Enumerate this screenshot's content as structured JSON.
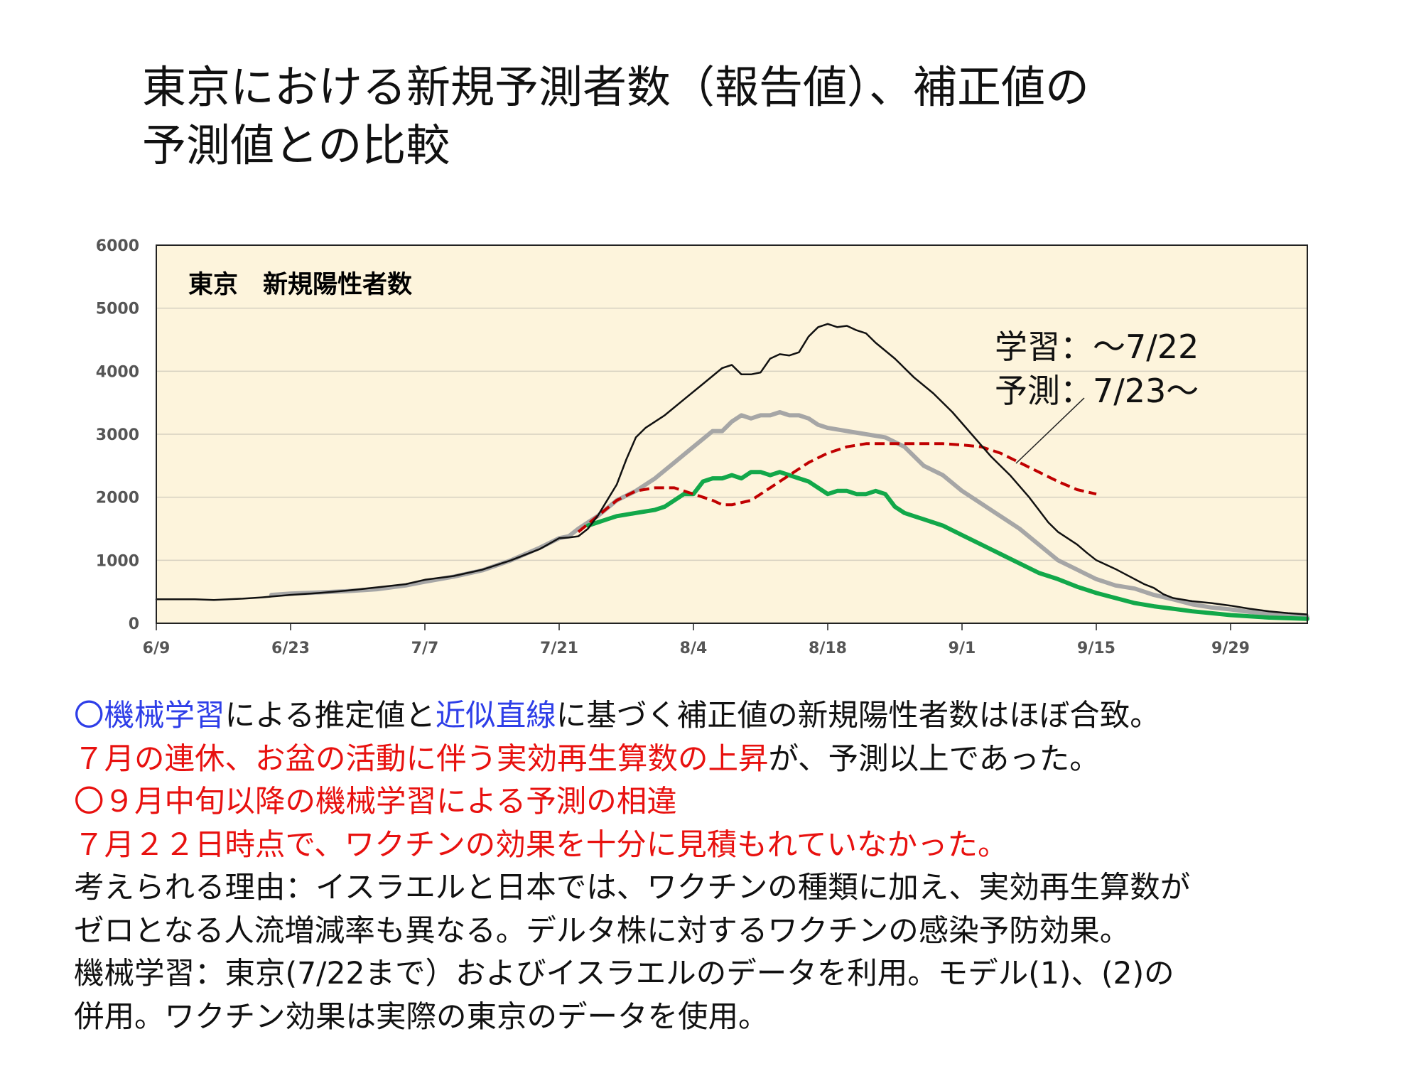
{
  "slide": {
    "title_line1": "東京における新規予測者数（報告値）、補正値の",
    "title_line2": "予測値との比較"
  },
  "chart_data": {
    "type": "line",
    "title": "東京　新規陽性者数",
    "ylim": [
      0,
      6000
    ],
    "y_ticks": [
      "0",
      "1000",
      "2000",
      "3000",
      "4000",
      "5000",
      "6000"
    ],
    "x_tick_labels": [
      "6/9",
      "6/23",
      "7/7",
      "7/21",
      "8/4",
      "8/18",
      "9/1",
      "9/15",
      "9/29"
    ],
    "x_tick_days": [
      0,
      14,
      28,
      42,
      56,
      70,
      84,
      98,
      112
    ],
    "xlim_days": [
      0,
      120
    ],
    "grid": true,
    "background": "#fdf4dc",
    "annotation_line1": "学習：～7/22",
    "annotation_line2": "予測：7/23～",
    "series": [
      {
        "color": "#111111",
        "style": "solid",
        "points": [
          [
            0,
            380
          ],
          [
            4,
            380
          ],
          [
            6,
            370
          ],
          [
            9,
            390
          ],
          [
            11,
            410
          ],
          [
            14,
            450
          ],
          [
            17,
            480
          ],
          [
            20,
            520
          ],
          [
            23,
            570
          ],
          [
            26,
            620
          ],
          [
            28,
            690
          ],
          [
            31,
            750
          ],
          [
            34,
            850
          ],
          [
            37,
            1000
          ],
          [
            40,
            1180
          ],
          [
            42,
            1350
          ],
          [
            43,
            1360
          ],
          [
            44,
            1380
          ],
          [
            45,
            1500
          ],
          [
            46,
            1700
          ],
          [
            48,
            2200
          ],
          [
            49,
            2600
          ],
          [
            50,
            2950
          ],
          [
            51,
            3100
          ],
          [
            53,
            3300
          ],
          [
            55,
            3550
          ],
          [
            57,
            3800
          ],
          [
            59,
            4050
          ],
          [
            60,
            4100
          ],
          [
            61,
            3950
          ],
          [
            62,
            3950
          ],
          [
            63,
            3980
          ],
          [
            64,
            4200
          ],
          [
            65,
            4270
          ],
          [
            66,
            4250
          ],
          [
            67,
            4300
          ],
          [
            68,
            4550
          ],
          [
            69,
            4700
          ],
          [
            70,
            4750
          ],
          [
            71,
            4700
          ],
          [
            72,
            4720
          ],
          [
            73,
            4650
          ],
          [
            74,
            4600
          ],
          [
            75,
            4450
          ],
          [
            77,
            4200
          ],
          [
            79,
            3900
          ],
          [
            81,
            3650
          ],
          [
            83,
            3350
          ],
          [
            85,
            3000
          ],
          [
            87,
            2650
          ],
          [
            89,
            2350
          ],
          [
            91,
            2000
          ],
          [
            92,
            1800
          ],
          [
            93,
            1600
          ],
          [
            94,
            1450
          ],
          [
            95,
            1350
          ],
          [
            96,
            1250
          ],
          [
            97,
            1120
          ],
          [
            98,
            1000
          ],
          [
            99,
            930
          ],
          [
            100,
            860
          ],
          [
            101,
            780
          ],
          [
            103,
            620
          ],
          [
            104,
            560
          ],
          [
            105,
            460
          ],
          [
            106,
            400
          ],
          [
            108,
            350
          ],
          [
            110,
            320
          ],
          [
            112,
            280
          ],
          [
            114,
            230
          ],
          [
            116,
            190
          ],
          [
            118,
            160
          ],
          [
            120,
            140
          ]
        ]
      },
      {
        "color": "#a6a6a6",
        "style": "thick",
        "points": [
          [
            12,
            450
          ],
          [
            14,
            470
          ],
          [
            17,
            490
          ],
          [
            20,
            510
          ],
          [
            23,
            540
          ],
          [
            26,
            600
          ],
          [
            28,
            660
          ],
          [
            31,
            740
          ],
          [
            34,
            840
          ],
          [
            37,
            1000
          ],
          [
            40,
            1200
          ],
          [
            42,
            1350
          ],
          [
            43,
            1380
          ],
          [
            44,
            1500
          ],
          [
            46,
            1700
          ],
          [
            48,
            1950
          ],
          [
            50,
            2100
          ],
          [
            52,
            2300
          ],
          [
            54,
            2550
          ],
          [
            56,
            2800
          ],
          [
            58,
            3050
          ],
          [
            59,
            3050
          ],
          [
            60,
            3200
          ],
          [
            61,
            3300
          ],
          [
            62,
            3250
          ],
          [
            63,
            3300
          ],
          [
            64,
            3300
          ],
          [
            65,
            3350
          ],
          [
            66,
            3300
          ],
          [
            67,
            3300
          ],
          [
            68,
            3250
          ],
          [
            69,
            3150
          ],
          [
            70,
            3100
          ],
          [
            72,
            3050
          ],
          [
            74,
            3000
          ],
          [
            76,
            2950
          ],
          [
            78,
            2800
          ],
          [
            79,
            2650
          ],
          [
            80,
            2500
          ],
          [
            82,
            2350
          ],
          [
            84,
            2100
          ],
          [
            86,
            1900
          ],
          [
            88,
            1700
          ],
          [
            90,
            1500
          ],
          [
            92,
            1250
          ],
          [
            94,
            1000
          ],
          [
            96,
            850
          ],
          [
            98,
            700
          ],
          [
            100,
            600
          ],
          [
            102,
            550
          ],
          [
            104,
            450
          ],
          [
            106,
            380
          ],
          [
            108,
            300
          ],
          [
            110,
            250
          ],
          [
            112,
            220
          ],
          [
            114,
            180
          ],
          [
            116,
            150
          ],
          [
            118,
            120
          ],
          [
            120,
            100
          ]
        ]
      },
      {
        "color": "#12a84a",
        "style": "thick",
        "points": [
          [
            45,
            1550
          ],
          [
            46,
            1600
          ],
          [
            47,
            1650
          ],
          [
            48,
            1700
          ],
          [
            50,
            1750
          ],
          [
            52,
            1800
          ],
          [
            53,
            1850
          ],
          [
            54,
            1950
          ],
          [
            55,
            2050
          ],
          [
            56,
            2050
          ],
          [
            57,
            2250
          ],
          [
            58,
            2300
          ],
          [
            59,
            2300
          ],
          [
            60,
            2350
          ],
          [
            61,
            2300
          ],
          [
            62,
            2400
          ],
          [
            63,
            2400
          ],
          [
            64,
            2350
          ],
          [
            65,
            2400
          ],
          [
            66,
            2350
          ],
          [
            67,
            2300
          ],
          [
            68,
            2250
          ],
          [
            69,
            2150
          ],
          [
            70,
            2050
          ],
          [
            71,
            2100
          ],
          [
            72,
            2100
          ],
          [
            73,
            2050
          ],
          [
            74,
            2050
          ],
          [
            75,
            2100
          ],
          [
            76,
            2050
          ],
          [
            77,
            1850
          ],
          [
            78,
            1750
          ],
          [
            79,
            1700
          ],
          [
            80,
            1650
          ],
          [
            81,
            1600
          ],
          [
            82,
            1550
          ],
          [
            84,
            1400
          ],
          [
            86,
            1250
          ],
          [
            88,
            1100
          ],
          [
            90,
            950
          ],
          [
            92,
            800
          ],
          [
            94,
            700
          ],
          [
            96,
            580
          ],
          [
            98,
            480
          ],
          [
            100,
            400
          ],
          [
            102,
            320
          ],
          [
            104,
            270
          ],
          [
            106,
            230
          ],
          [
            108,
            190
          ],
          [
            110,
            160
          ],
          [
            112,
            130
          ],
          [
            114,
            110
          ],
          [
            116,
            90
          ],
          [
            118,
            80
          ],
          [
            120,
            70
          ]
        ]
      },
      {
        "color": "#c00000",
        "style": "dashed",
        "points": [
          [
            44,
            1450
          ],
          [
            46,
            1700
          ],
          [
            48,
            1950
          ],
          [
            50,
            2100
          ],
          [
            52,
            2150
          ],
          [
            54,
            2150
          ],
          [
            56,
            2050
          ],
          [
            58,
            1950
          ],
          [
            59,
            1880
          ],
          [
            60,
            1880
          ],
          [
            62,
            1950
          ],
          [
            64,
            2150
          ],
          [
            66,
            2350
          ],
          [
            68,
            2550
          ],
          [
            70,
            2700
          ],
          [
            72,
            2800
          ],
          [
            74,
            2850
          ],
          [
            76,
            2850
          ],
          [
            78,
            2850
          ],
          [
            80,
            2850
          ],
          [
            82,
            2850
          ],
          [
            84,
            2830
          ],
          [
            86,
            2800
          ],
          [
            88,
            2700
          ],
          [
            90,
            2550
          ],
          [
            92,
            2400
          ],
          [
            94,
            2250
          ],
          [
            96,
            2120
          ],
          [
            98,
            2050
          ]
        ]
      }
    ]
  },
  "notes": {
    "l1_a": "〇機械学習",
    "l1_b": "による推定値と",
    "l1_c": "近似直線",
    "l1_d": "に基づく補正値の新規陽性者数はほぼ合致。",
    "l2_a": "７月の連休、お盆の活動に伴う実効再生算数の上昇",
    "l2_b": "が、予測以上であった。",
    "l3": "〇９月中旬以降の機械学習による予測の相違",
    "l4": "７月２２日時点で、ワクチンの効果を十分に見積もれていなかった。",
    "l5": "考えられる理由：イスラエルと日本では、ワクチンの種類に加え、実効再生算数が",
    "l6": "ゼロとなる人流増減率も異なる。デルタ株に対するワクチンの感染予防効果。",
    "l7": "機械学習：東京(7/22まで）およびイスラエルのデータを利用。モデル(1)、(2)の",
    "l8": "併用。ワクチン効果は実際の東京のデータを使用。"
  }
}
